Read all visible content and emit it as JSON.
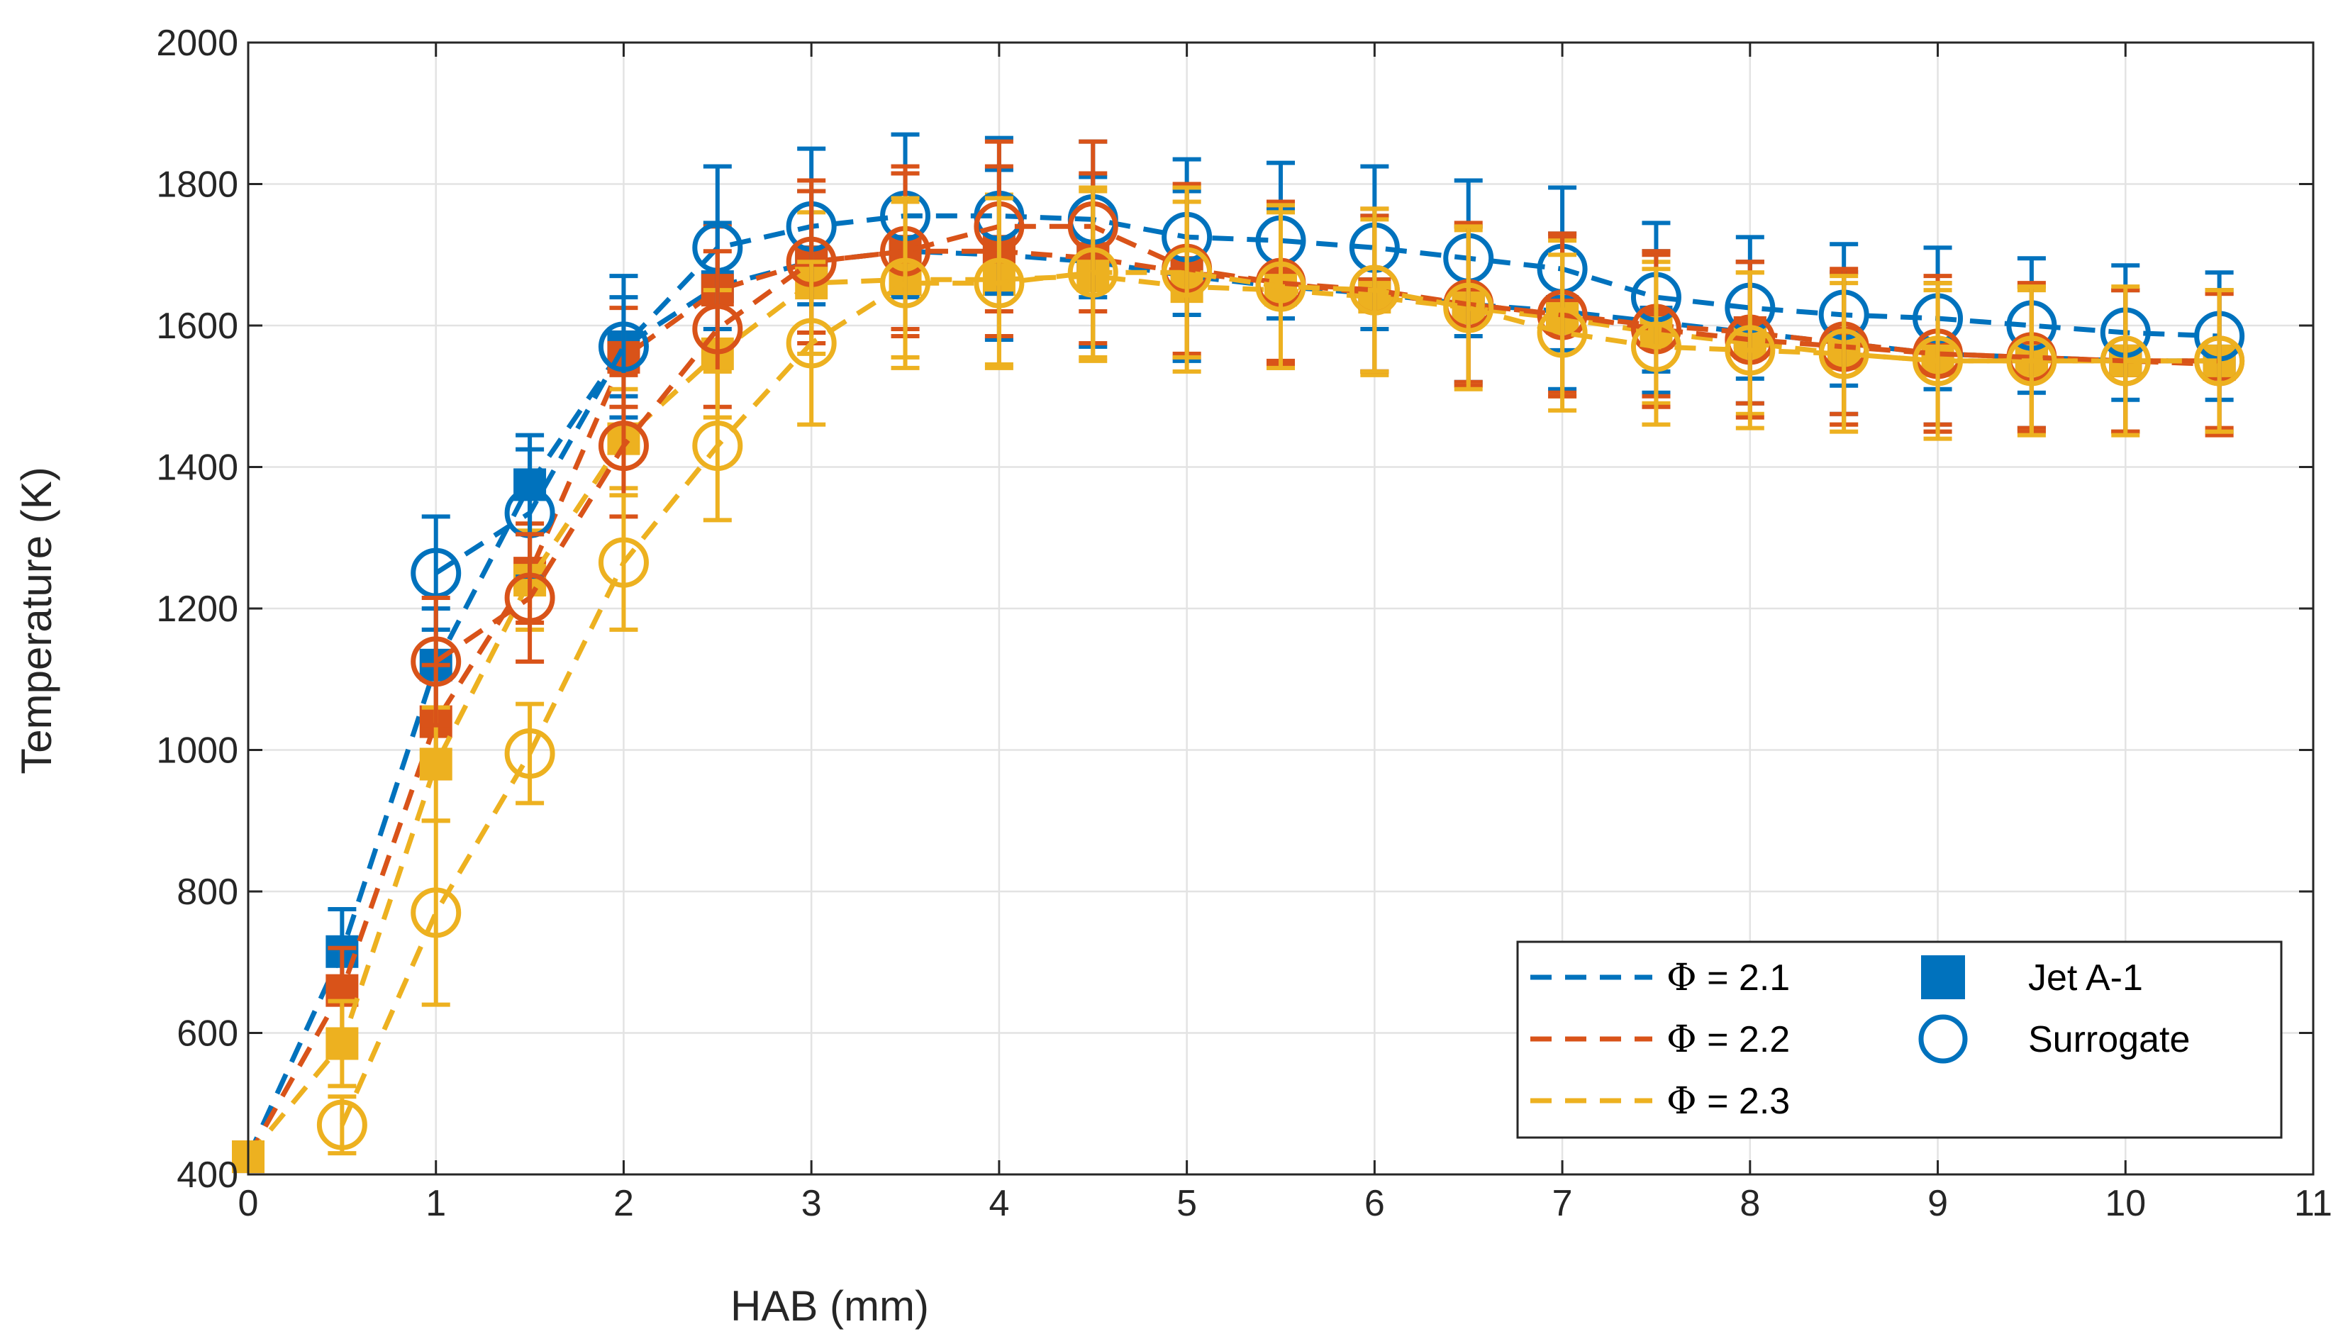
{
  "chart_data": {
    "type": "scatter",
    "title": "",
    "xlabel": "HAB (mm)",
    "ylabel": "Temperature (K)",
    "xlim": [
      0,
      11
    ],
    "ylim": [
      400,
      2000
    ],
    "xticks": [
      0,
      1,
      2,
      3,
      4,
      5,
      6,
      7,
      8,
      9,
      10,
      11
    ],
    "yticks": [
      400,
      600,
      800,
      1000,
      1200,
      1400,
      1600,
      1800,
      2000
    ],
    "grid": true,
    "legend_position": "bottom-right",
    "colors": {
      "phi_2_1": "#0072BD",
      "phi_2_2": "#D95319",
      "phi_2_3": "#EDB120"
    },
    "legend": {
      "lines": [
        {
          "symbol": "Φ",
          "label": " = 2.1",
          "color": "#0072BD"
        },
        {
          "symbol": "Φ",
          "label": " = 2.2",
          "color": "#D95319"
        },
        {
          "symbol": "Φ",
          "label": " = 2.3",
          "color": "#EDB120"
        }
      ],
      "markers": [
        {
          "label": "Jet A-1",
          "marker": "filled-square",
          "color": "#0072BD"
        },
        {
          "label": "Surrogate",
          "marker": "open-circle",
          "color": "#0072BD"
        }
      ]
    },
    "series": [
      {
        "name": "Φ = 2.1 Jet A-1",
        "phi": 2.1,
        "fuel": "Jet A-1",
        "color": "#0072BD",
        "marker": "filled-square",
        "line": "dashed",
        "x": [
          0,
          0.5,
          1,
          1.5,
          2,
          2.5,
          3,
          3.5,
          4,
          4.5,
          5,
          5.5,
          6,
          6.5,
          7,
          7.5,
          8,
          8.5,
          9,
          9.5,
          10,
          10.5
        ],
        "y": [
          425,
          715,
          1120,
          1375,
          1570,
          1655,
          1690,
          1705,
          1700,
          1690,
          1670,
          1655,
          1645,
          1630,
          1620,
          1605,
          1590,
          1575,
          1560,
          1555,
          1550,
          1550
        ],
        "err": [
          0,
          60,
          80,
          70,
          70,
          90,
          100,
          110,
          120,
          120,
          120,
          110,
          110,
          110,
          110,
          100,
          100,
          100,
          100,
          100,
          100,
          100
        ]
      },
      {
        "name": "Φ = 2.2 Jet A-1",
        "phi": 2.2,
        "fuel": "Jet A-1",
        "color": "#D95319",
        "marker": "filled-square",
        "line": "dashed",
        "x": [
          0,
          0.5,
          1,
          1.5,
          2,
          2.5,
          3,
          3.5,
          4,
          4.5,
          5,
          5.5,
          6,
          6.5,
          7,
          7.5,
          8,
          8.5,
          9,
          9.5,
          10,
          10.5
        ],
        "y": [
          425,
          660,
          1040,
          1250,
          1555,
          1650,
          1690,
          1705,
          1705,
          1695,
          1675,
          1660,
          1645,
          1630,
          1615,
          1600,
          1590,
          1575,
          1560,
          1555,
          1550,
          1545
        ],
        "err": [
          0,
          60,
          80,
          70,
          70,
          90,
          100,
          110,
          120,
          120,
          120,
          110,
          110,
          110,
          110,
          100,
          100,
          100,
          100,
          100,
          100,
          100
        ]
      },
      {
        "name": "Φ = 2.3 Jet A-1",
        "phi": 2.3,
        "fuel": "Jet A-1",
        "color": "#EDB120",
        "marker": "filled-square",
        "line": "dashed",
        "x": [
          0,
          0.5,
          1,
          1.5,
          2,
          2.5,
          3,
          3.5,
          4,
          4.5,
          5,
          5.5,
          6,
          6.5,
          7,
          7.5,
          8,
          8.5,
          9,
          9.5,
          10,
          10.5
        ],
        "y": [
          425,
          585,
          980,
          1240,
          1440,
          1560,
          1660,
          1665,
          1665,
          1670,
          1655,
          1650,
          1640,
          1625,
          1610,
          1590,
          1575,
          1560,
          1550,
          1550,
          1550,
          1550
        ],
        "err": [
          0,
          60,
          80,
          70,
          70,
          90,
          100,
          110,
          120,
          120,
          120,
          110,
          110,
          110,
          110,
          100,
          100,
          100,
          100,
          100,
          100,
          100
        ]
      },
      {
        "name": "Φ = 2.1 Surrogate",
        "phi": 2.1,
        "fuel": "Surrogate",
        "color": "#0072BD",
        "marker": "open-circle",
        "line": "dashed",
        "x": [
          1,
          1.5,
          2,
          2.5,
          3,
          3.5,
          4,
          4.5,
          5,
          5.5,
          6,
          6.5,
          7,
          7.5,
          8,
          8.5,
          9,
          9.5,
          10,
          10.5
        ],
        "y": [
          1250,
          1335,
          1570,
          1710,
          1740,
          1755,
          1755,
          1750,
          1725,
          1720,
          1710,
          1695,
          1680,
          1640,
          1625,
          1615,
          1610,
          1600,
          1590,
          1585
        ],
        "err": [
          80,
          90,
          100,
          115,
          110,
          115,
          110,
          110,
          110,
          110,
          115,
          110,
          115,
          105,
          100,
          100,
          100,
          95,
          95,
          90
        ]
      },
      {
        "name": "Φ = 2.2 Surrogate",
        "phi": 2.2,
        "fuel": "Surrogate",
        "color": "#D95319",
        "marker": "open-circle",
        "line": "dashed",
        "x": [
          1,
          1.5,
          2,
          2.5,
          3,
          3.5,
          4,
          4.5,
          5,
          5.5,
          6,
          6.5,
          7,
          7.5,
          8,
          8.5,
          9,
          9.5,
          10,
          10.5
        ],
        "y": [
          1125,
          1215,
          1430,
          1595,
          1690,
          1705,
          1740,
          1740,
          1680,
          1660,
          1650,
          1630,
          1615,
          1595,
          1580,
          1570,
          1560,
          1555,
          1550,
          1550
        ],
        "err": [
          90,
          90,
          100,
          110,
          115,
          120,
          120,
          120,
          120,
          115,
          115,
          115,
          115,
          110,
          110,
          110,
          110,
          105,
          100,
          95
        ]
      },
      {
        "name": "Φ = 2.3 Surrogate",
        "phi": 2.3,
        "fuel": "Surrogate",
        "color": "#EDB120",
        "marker": "open-circle",
        "line": "dashed",
        "x": [
          0.5,
          1,
          1.5,
          2,
          2.5,
          3,
          3.5,
          4,
          4.5,
          5,
          5.5,
          6,
          6.5,
          7,
          7.5,
          8,
          8.5,
          9,
          9.5,
          10,
          10.5
        ],
        "y": [
          470,
          770,
          995,
          1265,
          1430,
          1575,
          1660,
          1660,
          1675,
          1675,
          1655,
          1650,
          1625,
          1590,
          1570,
          1565,
          1560,
          1550,
          1550,
          1550,
          1550
        ],
        "err": [
          40,
          130,
          70,
          95,
          105,
          115,
          120,
          120,
          120,
          120,
          115,
          115,
          115,
          110,
          110,
          110,
          110,
          110,
          105,
          105,
          100
        ]
      }
    ]
  }
}
